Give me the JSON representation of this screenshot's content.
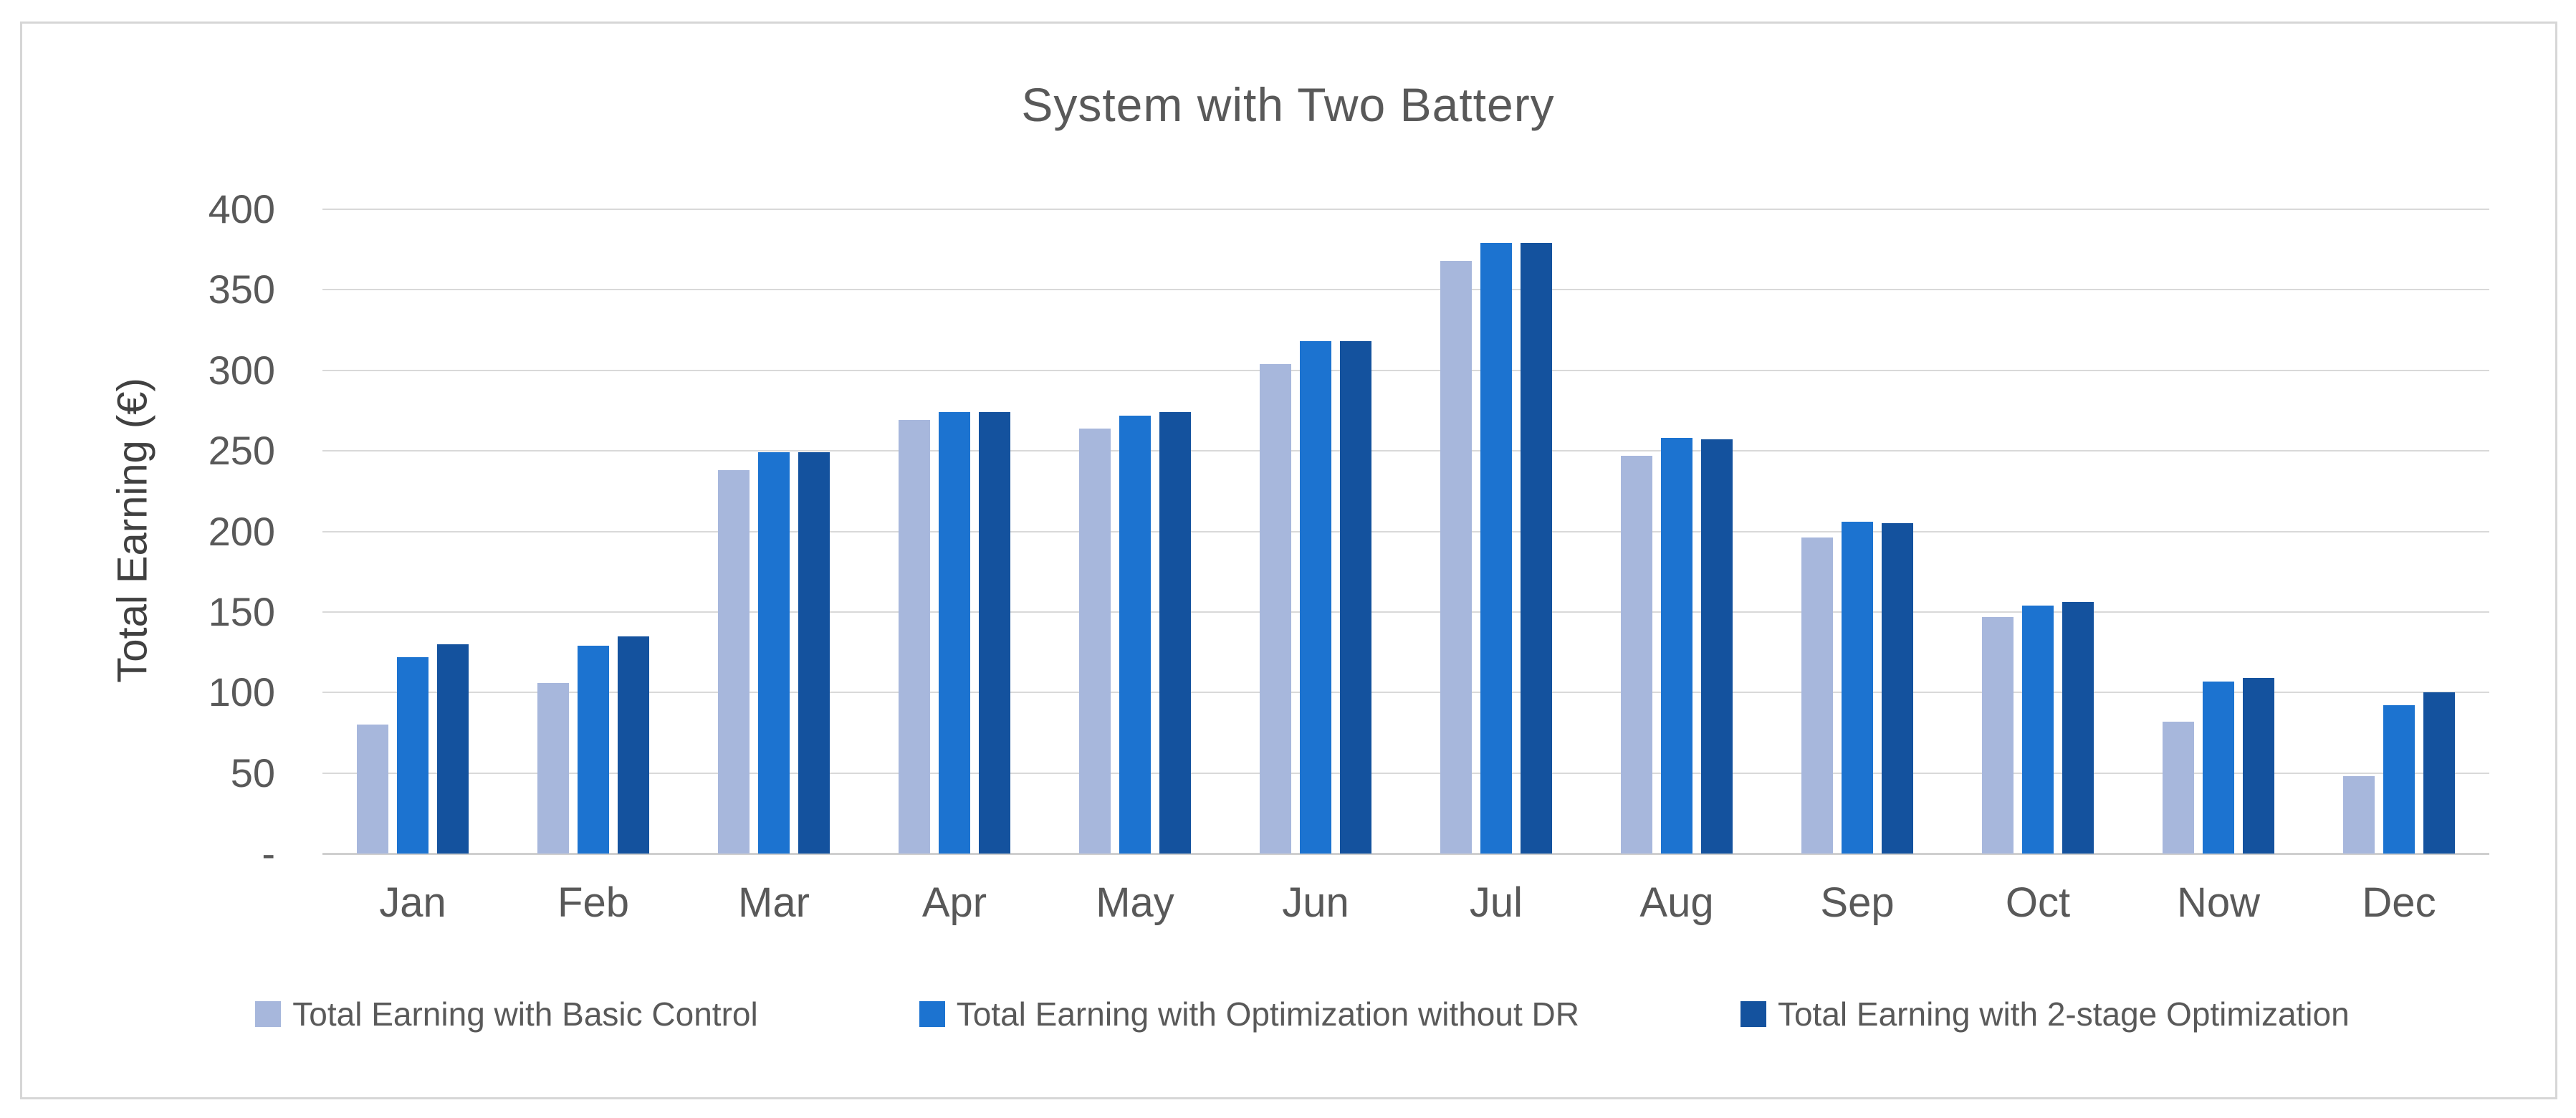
{
  "chart_data": {
    "type": "bar",
    "title": "System with Two Battery",
    "ylabel": "Total Earning (€)",
    "xlabel": "",
    "ylim": [
      0,
      400
    ],
    "y_tick_labels": [
      "400",
      "350",
      "300",
      "250",
      "200",
      "150",
      "100",
      "50",
      "-"
    ],
    "grid": "horizontal",
    "legend_position": "bottom",
    "categories": [
      "Jan",
      "Feb",
      "Mar",
      "Apr",
      "May",
      "Jun",
      "Jul",
      "Aug",
      "Sep",
      "Oct",
      "Now",
      "Dec"
    ],
    "series": [
      {
        "name": "Total Earning with Basic Control",
        "color": "#A7B7DC",
        "values": [
          80,
          106,
          238,
          269,
          264,
          304,
          368,
          247,
          196,
          147,
          82,
          48
        ]
      },
      {
        "name": "Total Earning with Optimization without DR",
        "color": "#1C73D0",
        "values": [
          122,
          129,
          249,
          274,
          272,
          318,
          379,
          258,
          206,
          154,
          107,
          92
        ]
      },
      {
        "name": "Total Earning with 2-stage Optimization",
        "color": "#14529E",
        "values": [
          130,
          135,
          249,
          274,
          274,
          318,
          379,
          257,
          205,
          156,
          109,
          100
        ]
      }
    ]
  },
  "colors": {
    "background": "#FFFFFF",
    "frame_border": "#D6D6D6",
    "gridline": "#D9D9D9",
    "axis_line": "#CFCFCF",
    "text": "#595959",
    "axis_title_text": "#404040"
  }
}
